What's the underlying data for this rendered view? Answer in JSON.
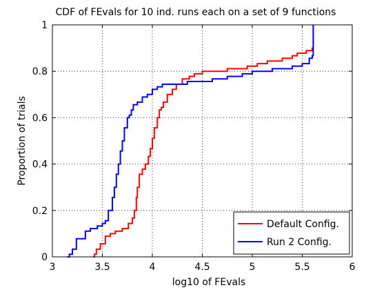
{
  "chart_data": {
    "type": "line",
    "title": "CDF of FEvals for 10 ind. runs each on a set of 9 functions",
    "xlabel": "log10 of FEvals",
    "ylabel": "Proportion of trials",
    "xlim": [
      3,
      6
    ],
    "ylim": [
      0,
      1
    ],
    "xticks": [
      "3",
      "3.5",
      "4",
      "4.5",
      "5",
      "5.5",
      "6"
    ],
    "yticks": [
      "0",
      "0.2",
      "0.4",
      "0.6",
      "0.8",
      "1"
    ],
    "grid": true,
    "legend_position": "bottom-right",
    "series": [
      {
        "name": "Default Config.",
        "color": "#ff0000",
        "step": true,
        "x": [
          3.41,
          3.42,
          3.44,
          3.48,
          3.53,
          3.58,
          3.63,
          3.7,
          3.76,
          3.8,
          3.82,
          3.84,
          3.85,
          3.87,
          3.9,
          3.93,
          3.96,
          3.98,
          4.0,
          4.02,
          4.05,
          4.07,
          4.09,
          4.11,
          4.15,
          4.2,
          4.24,
          4.3,
          4.37,
          4.42,
          4.5,
          4.6,
          4.75,
          4.8,
          4.95,
          5.05,
          5.15,
          5.3,
          5.4,
          5.45,
          5.5,
          5.54,
          5.57,
          5.6,
          5.61
        ],
        "y": [
          0.0,
          0.011,
          0.033,
          0.056,
          0.089,
          0.1,
          0.111,
          0.122,
          0.144,
          0.167,
          0.2,
          0.256,
          0.3,
          0.356,
          0.378,
          0.4,
          0.433,
          0.467,
          0.511,
          0.556,
          0.6,
          0.633,
          0.644,
          0.667,
          0.7,
          0.722,
          0.744,
          0.767,
          0.778,
          0.789,
          0.8,
          0.8,
          0.811,
          0.811,
          0.822,
          0.833,
          0.844,
          0.856,
          0.867,
          0.878,
          0.878,
          0.889,
          0.889,
          0.9,
          1.0
        ]
      },
      {
        "name": "Run 2 Config.",
        "color": "#0000ff",
        "step": true,
        "x": [
          3.15,
          3.17,
          3.2,
          3.24,
          3.33,
          3.38,
          3.45,
          3.5,
          3.53,
          3.56,
          3.6,
          3.62,
          3.64,
          3.66,
          3.68,
          3.7,
          3.72,
          3.75,
          3.77,
          3.79,
          3.81,
          3.85,
          3.9,
          3.95,
          4.0,
          4.05,
          4.1,
          4.2,
          4.35,
          4.45,
          4.6,
          4.75,
          4.9,
          5.0,
          5.2,
          5.4,
          5.5,
          5.57,
          5.6,
          5.61
        ],
        "y": [
          0.0,
          0.011,
          0.033,
          0.078,
          0.111,
          0.122,
          0.133,
          0.144,
          0.156,
          0.2,
          0.256,
          0.3,
          0.356,
          0.4,
          0.456,
          0.5,
          0.556,
          0.6,
          0.611,
          0.633,
          0.656,
          0.667,
          0.689,
          0.7,
          0.722,
          0.733,
          0.744,
          0.744,
          0.756,
          0.756,
          0.767,
          0.778,
          0.789,
          0.8,
          0.811,
          0.822,
          0.833,
          0.856,
          0.867,
          1.0
        ]
      }
    ]
  }
}
